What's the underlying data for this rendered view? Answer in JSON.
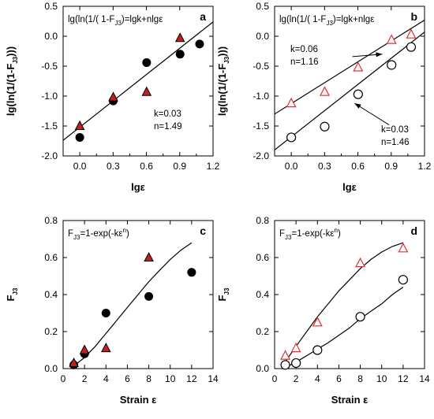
{
  "colors": {
    "marker_red": "#c41e1e",
    "triangle_open": "#e03030",
    "ink": "#000000"
  },
  "chart_data": [
    {
      "type": "scatter",
      "panel_label": "a",
      "xlabel": "lgε",
      "ylabel": "lg(ln(1/(1-F",
      "ylabel_sub": "J3",
      "ylabel_tail": ")))",
      "xlim": [
        -0.15,
        1.2
      ],
      "ylim": [
        -2.0,
        0.5
      ],
      "xticks": [
        0.0,
        0.3,
        0.6,
        0.9,
        1.2
      ],
      "yticks": [
        -2.0,
        -1.5,
        -1.0,
        -0.5,
        0.0,
        0.5
      ],
      "xtick_labels": [
        "0.0",
        "0.3",
        "0.6",
        "0.9",
        "1.2"
      ],
      "ytick_labels": [
        "-2.0",
        "-1.5",
        "-1.0",
        "-0.5",
        "0.0",
        "0.5"
      ],
      "equation": {
        "pre": "lg(ln(1/( 1-F",
        "sub": "J3",
        "post": ")=lgk+nlgε"
      },
      "annotations": [
        {
          "lines": [
            "k=0.03",
            "n=1.49"
          ]
        }
      ],
      "series": [
        {
          "marker": "filled-circle",
          "x": [
            0.0,
            0.301,
            0.602,
            0.903,
            1.079
          ],
          "y": [
            -1.69,
            -1.08,
            -0.44,
            -0.3,
            -0.13
          ]
        },
        {
          "marker": "filled-triangle",
          "x": [
            0.0,
            0.301,
            0.602,
            0.903
          ],
          "y": [
            -1.5,
            -1.02,
            -0.93,
            -0.03
          ]
        }
      ],
      "fits": [
        {
          "x": [
            -0.15,
            1.2
          ],
          "y": [
            -1.74,
            0.24
          ]
        }
      ]
    },
    {
      "type": "scatter",
      "panel_label": "b",
      "xlabel": "lgε",
      "ylabel": "lg(ln(1/(1-F",
      "ylabel_sub": "J3",
      "ylabel_tail": ")))",
      "xlim": [
        -0.15,
        1.2
      ],
      "ylim": [
        -2.0,
        0.5
      ],
      "xticks": [
        0.0,
        0.3,
        0.6,
        0.9,
        1.2
      ],
      "yticks": [
        -2.0,
        -1.5,
        -1.0,
        -0.5,
        0.0,
        0.5
      ],
      "xtick_labels": [
        "0.0",
        "0.3",
        "0.6",
        "0.9",
        "1.2"
      ],
      "ytick_labels": [
        "-2.0",
        "-1.5",
        "-1.0",
        "-0.5",
        "0.0",
        "0.5"
      ],
      "equation": {
        "pre": "lg(ln(1/( 1-F",
        "sub": "J3",
        "post": ")=lgk+nlgε"
      },
      "annotations": [
        {
          "lines": [
            "k=0.06",
            "n=1.16"
          ],
          "arrow": {
            "from": [
              0.55,
              -0.34
            ],
            "to": [
              0.82,
              -0.3
            ]
          }
        },
        {
          "lines": [
            "k=0.03",
            "n=1.46"
          ],
          "arrow": {
            "from": [
              0.88,
              -1.48
            ],
            "to": [
              0.57,
              -1.12
            ]
          }
        }
      ],
      "series": [
        {
          "marker": "open-circle",
          "x": [
            0.0,
            0.301,
            0.602,
            0.903,
            1.079
          ],
          "y": [
            -1.69,
            -1.51,
            -0.97,
            -0.48,
            -0.18
          ]
        },
        {
          "marker": "open-triangle",
          "x": [
            0.0,
            0.301,
            0.602,
            0.903,
            1.079
          ],
          "y": [
            -1.12,
            -0.93,
            -0.52,
            -0.06,
            0.03
          ]
        }
      ],
      "fits": [
        {
          "x": [
            -0.15,
            1.2
          ],
          "y": [
            -1.3,
            0.27
          ]
        },
        {
          "x": [
            -0.15,
            1.2
          ],
          "y": [
            -1.9,
            0.07
          ]
        }
      ]
    },
    {
      "type": "scatter",
      "panel_label": "c",
      "xlabel": "Strain ε",
      "ylabel": "F",
      "ylabel_sub": "J3",
      "ylabel_tail": "",
      "xlim": [
        0,
        14
      ],
      "ylim": [
        0.0,
        0.8
      ],
      "xticks": [
        0,
        2,
        4,
        6,
        8,
        10,
        12,
        14
      ],
      "yticks": [
        0.0,
        0.2,
        0.4,
        0.6,
        0.8
      ],
      "xtick_labels": [
        "0",
        "2",
        "4",
        "6",
        "8",
        "10",
        "12",
        "14"
      ],
      "ytick_labels": [
        "0.0",
        "0.2",
        "0.4",
        "0.6",
        "0.8"
      ],
      "equation": {
        "pre": "F",
        "sub": "J3",
        "post": "=1-exp(-kε",
        "sup": "n",
        "tail": ")"
      },
      "annotations": [],
      "series": [
        {
          "marker": "filled-circle",
          "x": [
            1,
            2,
            4,
            8,
            12
          ],
          "y": [
            0.02,
            0.08,
            0.3,
            0.39,
            0.52
          ]
        },
        {
          "marker": "filled-triangle",
          "x": [
            1,
            2,
            4,
            8
          ],
          "y": [
            0.03,
            0.1,
            0.11,
            0.6
          ]
        }
      ],
      "fits": [
        {
          "x": [
            0.8,
            2,
            3,
            4,
            5,
            6,
            7,
            8,
            9,
            10,
            11,
            12
          ],
          "y": [
            0.005,
            0.06,
            0.12,
            0.19,
            0.26,
            0.33,
            0.4,
            0.47,
            0.53,
            0.59,
            0.64,
            0.68
          ]
        }
      ]
    },
    {
      "type": "scatter",
      "panel_label": "d",
      "xlabel": "Strain ε",
      "ylabel": "F",
      "ylabel_sub": "J3",
      "ylabel_tail": "",
      "xlim": [
        0,
        14
      ],
      "ylim": [
        0.0,
        0.8
      ],
      "xticks": [
        0,
        2,
        4,
        6,
        8,
        10,
        12,
        14
      ],
      "yticks": [
        0.0,
        0.2,
        0.4,
        0.6,
        0.8
      ],
      "xtick_labels": [
        "0",
        "2",
        "4",
        "6",
        "8",
        "10",
        "12",
        "14"
      ],
      "ytick_labels": [
        "0.0",
        "0.2",
        "0.4",
        "0.6",
        "0.8"
      ],
      "equation": {
        "pre": "F",
        "sub": "J3",
        "post": "=1-exp(-kε",
        "sup": "n",
        "tail": ")"
      },
      "annotations": [],
      "series": [
        {
          "marker": "open-circle",
          "x": [
            1,
            2,
            4,
            8,
            12
          ],
          "y": [
            0.02,
            0.03,
            0.1,
            0.28,
            0.48
          ]
        },
        {
          "marker": "open-triangle",
          "x": [
            1,
            2,
            4,
            8,
            12
          ],
          "y": [
            0.07,
            0.11,
            0.25,
            0.57,
            0.65
          ]
        }
      ],
      "fits": [
        {
          "x": [
            0.8,
            2,
            3,
            4,
            5,
            6,
            7,
            8,
            9,
            10,
            11,
            12
          ],
          "y": [
            0.0,
            0.035,
            0.07,
            0.105,
            0.14,
            0.18,
            0.22,
            0.27,
            0.31,
            0.35,
            0.4,
            0.44
          ]
        },
        {
          "x": [
            0.8,
            2,
            3,
            4,
            5,
            6,
            7,
            8,
            9,
            10,
            11,
            12
          ],
          "y": [
            0.02,
            0.12,
            0.2,
            0.28,
            0.35,
            0.42,
            0.48,
            0.54,
            0.59,
            0.63,
            0.66,
            0.68
          ]
        }
      ]
    }
  ]
}
